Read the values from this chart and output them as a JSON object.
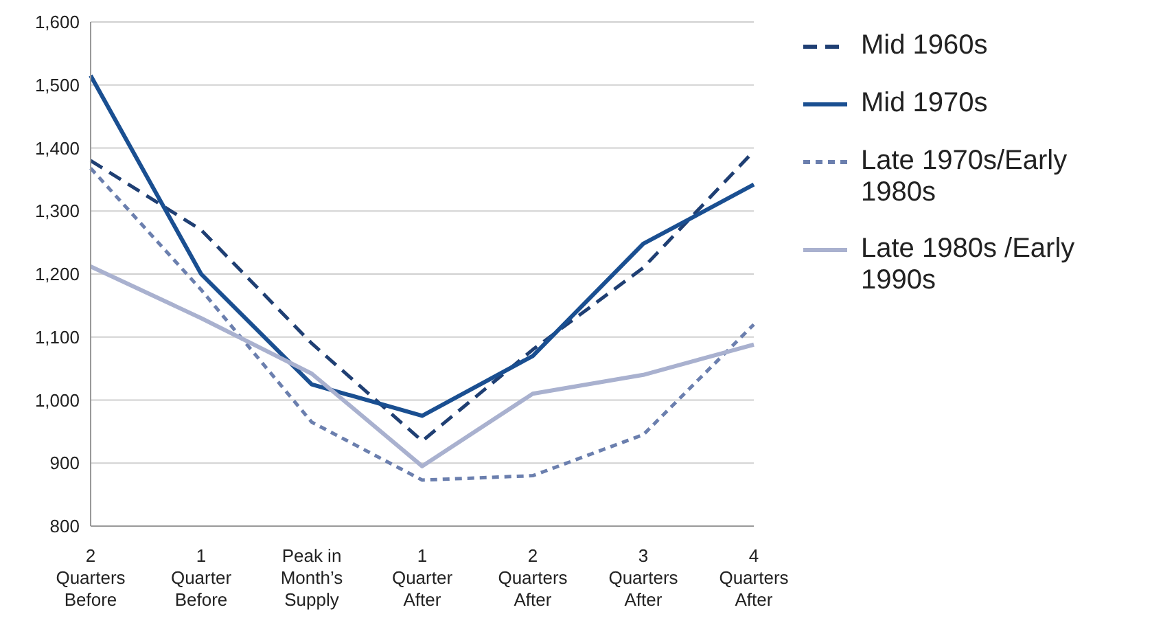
{
  "chart_data": {
    "type": "line",
    "categories": [
      "2 Quarters Before",
      "1 Quarter Before",
      "Peak in Month’s Supply",
      "1 Quarter After",
      "2 Quarters After",
      "3 Quarters After",
      "4 Quarters After"
    ],
    "series": [
      {
        "name": "Mid 1960s",
        "color": "#1f3f73",
        "line_style": "dashed",
        "values": [
          1380,
          1270,
          1090,
          935,
          1080,
          1210,
          1395
        ]
      },
      {
        "name": "Mid 1970s",
        "color": "#1a4f91",
        "line_style": "solid",
        "values": [
          1515,
          1200,
          1025,
          975,
          1070,
          1248,
          1342
        ]
      },
      {
        "name": "Late 1970s/Early 1980s",
        "color": "#6b7fae",
        "line_style": "dotted",
        "values": [
          1368,
          1175,
          965,
          873,
          880,
          945,
          1120
        ]
      },
      {
        "name": "Late 1980s /Early 1990s",
        "color": "#a9b1cf",
        "line_style": "solid",
        "values": [
          1212,
          1130,
          1042,
          895,
          1010,
          1040,
          1088
        ]
      }
    ],
    "ylim": [
      800,
      1600
    ],
    "yticks": [
      {
        "value": 800,
        "label": "800"
      },
      {
        "value": 900,
        "label": "900"
      },
      {
        "value": 1000,
        "label": "1,000"
      },
      {
        "value": 1100,
        "label": "1,100"
      },
      {
        "value": 1200,
        "label": "1,200"
      },
      {
        "value": 1300,
        "label": "1,300"
      },
      {
        "value": 1400,
        "label": "1,400"
      },
      {
        "value": 1500,
        "label": "1,500"
      },
      {
        "value": 1600,
        "label": "1,600"
      }
    ],
    "grid": "y",
    "legend": "right",
    "marker": "none"
  }
}
